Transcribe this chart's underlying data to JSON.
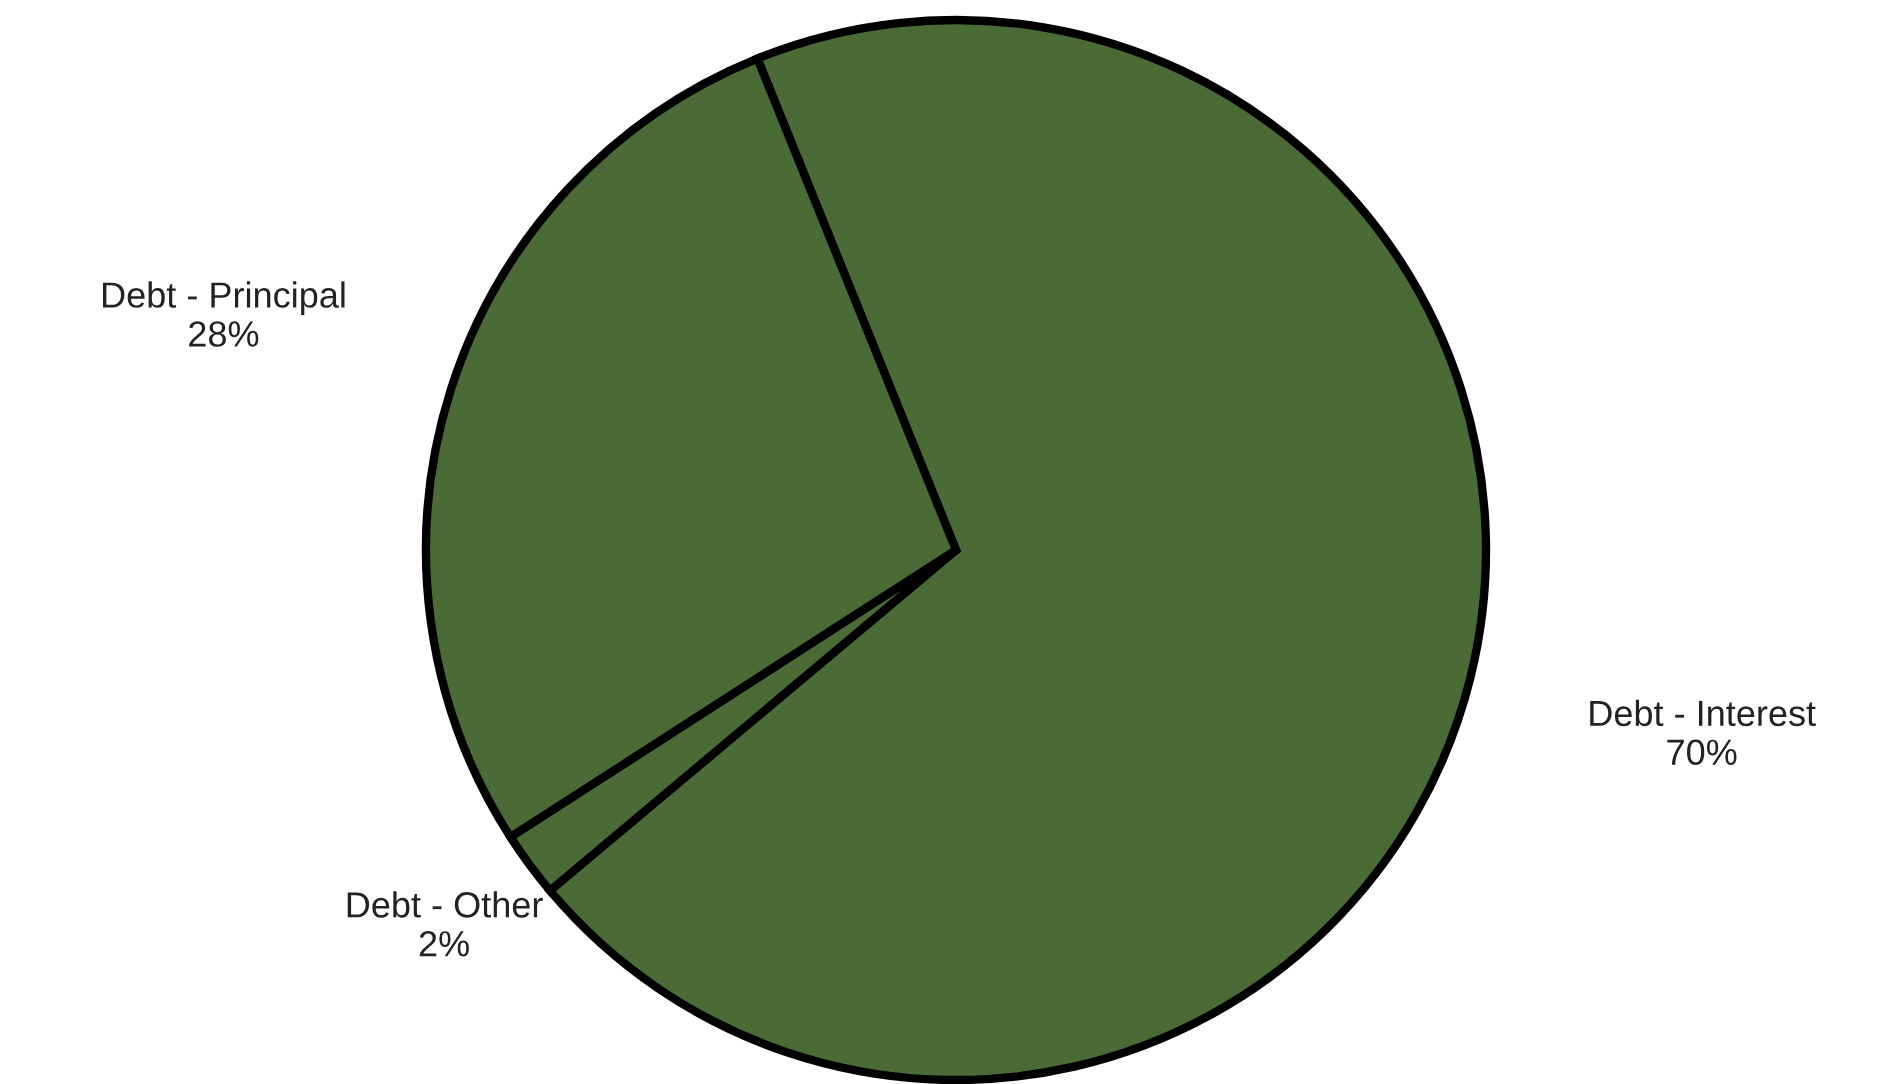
{
  "chart_data": {
    "type": "pie",
    "categories": [
      "Debt - Interest",
      "Debt - Other",
      "Debt - Principal"
    ],
    "values": [
      70,
      2,
      28
    ],
    "colors": [
      "#4a6b35",
      "#4a6b35",
      "#4a6b35"
    ],
    "value_labels": [
      "70%",
      "2%",
      "28%"
    ]
  }
}
